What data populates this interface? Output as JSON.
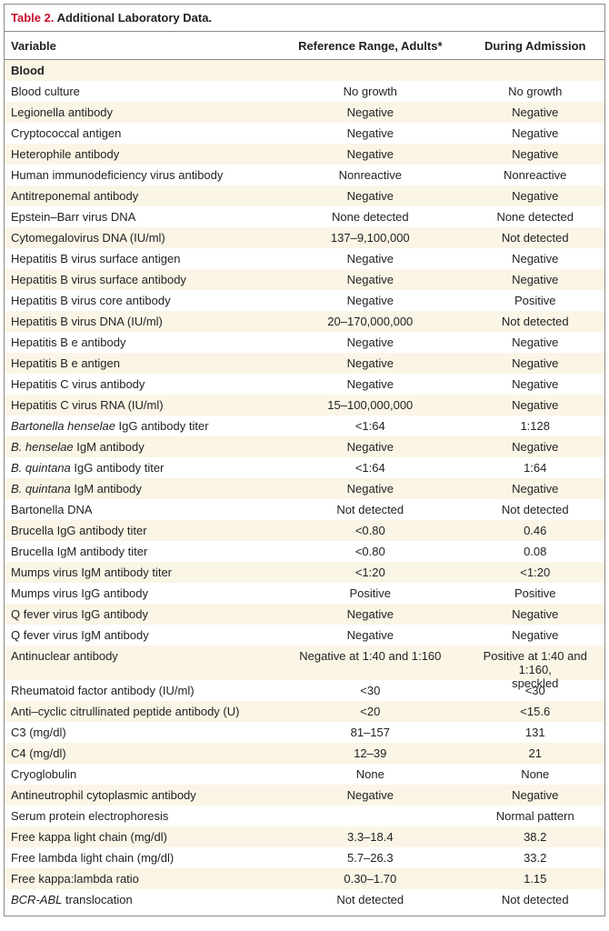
{
  "title": {
    "number": "Table 2.",
    "text": " Additional Laboratory Data."
  },
  "columns": [
    "Variable",
    "Reference Range, Adults*",
    "During Admission"
  ],
  "section": "Blood",
  "rows": [
    {
      "v": "Blood culture",
      "r": "No growth",
      "a": "No growth"
    },
    {
      "v": "Legionella antibody",
      "r": "Negative",
      "a": "Negative"
    },
    {
      "v": "Cryptococcal antigen",
      "r": "Negative",
      "a": "Negative"
    },
    {
      "v": "Heterophile antibody",
      "r": "Negative",
      "a": "Negative"
    },
    {
      "v": "Human immunodeficiency virus antibody",
      "r": "Nonreactive",
      "a": "Nonreactive"
    },
    {
      "v": "Antitreponemal antibody",
      "r": "Negative",
      "a": "Negative"
    },
    {
      "v": "Epstein–Barr virus DNA",
      "r": "None detected",
      "a": "None detected"
    },
    {
      "v": "Cytomegalovirus DNA (IU/ml)",
      "r": "137–9,100,000",
      "a": "Not detected"
    },
    {
      "v": "Hepatitis B virus surface antigen",
      "r": "Negative",
      "a": "Negative"
    },
    {
      "v": "Hepatitis B virus surface antibody",
      "r": "Negative",
      "a": "Negative"
    },
    {
      "v": "Hepatitis B virus core antibody",
      "r": "Negative",
      "a": "Positive"
    },
    {
      "v": "Hepatitis B virus DNA (IU/ml)",
      "r": "20–170,000,000",
      "a": "Not detected"
    },
    {
      "v": "Hepatitis B e antibody",
      "r": "Negative",
      "a": "Negative"
    },
    {
      "v": "Hepatitis B e antigen",
      "r": "Negative",
      "a": "Negative"
    },
    {
      "v": "Hepatitis C virus antibody",
      "r": "Negative",
      "a": "Negative"
    },
    {
      "v": "Hepatitis C virus RNA (IU/ml)",
      "r": "15–100,000,000",
      "a": "Negative"
    },
    {
      "vi": "Bartonella henselae",
      "vr": " IgG antibody titer",
      "r": "<1:64",
      "a": "1:128"
    },
    {
      "vi": "B. henselae",
      "vr": " IgM antibody",
      "r": "Negative",
      "a": "Negative"
    },
    {
      "vi": "B. quintana",
      "vr": " IgG antibody titer",
      "r": "<1:64",
      "a": "1:64"
    },
    {
      "vi": "B. quintana",
      "vr": " IgM antibody",
      "r": "Negative",
      "a": "Negative"
    },
    {
      "v": "Bartonella DNA",
      "r": "Not detected",
      "a": "Not detected"
    },
    {
      "v": "Brucella IgG antibody titer",
      "r": "<0.80",
      "a": "0.46"
    },
    {
      "v": "Brucella IgM antibody titer",
      "r": "<0.80",
      "a": "0.08"
    },
    {
      "v": "Mumps virus IgM antibody titer",
      "r": "<1:20",
      "a": "<1:20"
    },
    {
      "v": "Mumps virus IgG antibody",
      "r": "Positive",
      "a": "Positive"
    },
    {
      "v": "Q fever virus IgG antibody",
      "r": "Negative",
      "a": "Negative"
    },
    {
      "v": "Q fever virus IgM antibody",
      "r": "Negative",
      "a": "Negative"
    },
    {
      "v": "Antinuclear antibody",
      "r": "Negative at 1:40 and 1:160",
      "a": "Positive at 1:40 and 1:160,",
      "a2": "speckled",
      "tall": true
    },
    {
      "v": "Rheumatoid factor antibody (IU/ml)",
      "r": "<30",
      "a": "<30"
    },
    {
      "v": "Anti–cyclic citrullinated peptide antibody (U)",
      "r": "<20",
      "a": "<15.6"
    },
    {
      "v": "C3 (mg/dl)",
      "r": "81–157",
      "a": "131"
    },
    {
      "v": "C4 (mg/dl)",
      "r": "12–39",
      "a": "21"
    },
    {
      "v": "Cryoglobulin",
      "r": "None",
      "a": "None"
    },
    {
      "v": "Antineutrophil cytoplasmic antibody",
      "r": "Negative",
      "a": "Negative"
    },
    {
      "v": "Serum protein electrophoresis",
      "r": "",
      "a": "Normal pattern"
    },
    {
      "v": "Free kappa light chain (mg/dl)",
      "r": "3.3–18.4",
      "a": "38.2"
    },
    {
      "v": "Free lambda light chain (mg/dl)",
      "r": "5.7–26.3",
      "a": "33.2"
    },
    {
      "v": "Free kappa:lambda ratio",
      "r": "0.30–1.70",
      "a": "1.15"
    },
    {
      "vi": "BCR-ABL",
      "vr": " translocation",
      "r": "Not detected",
      "a": "Not detected"
    }
  ]
}
